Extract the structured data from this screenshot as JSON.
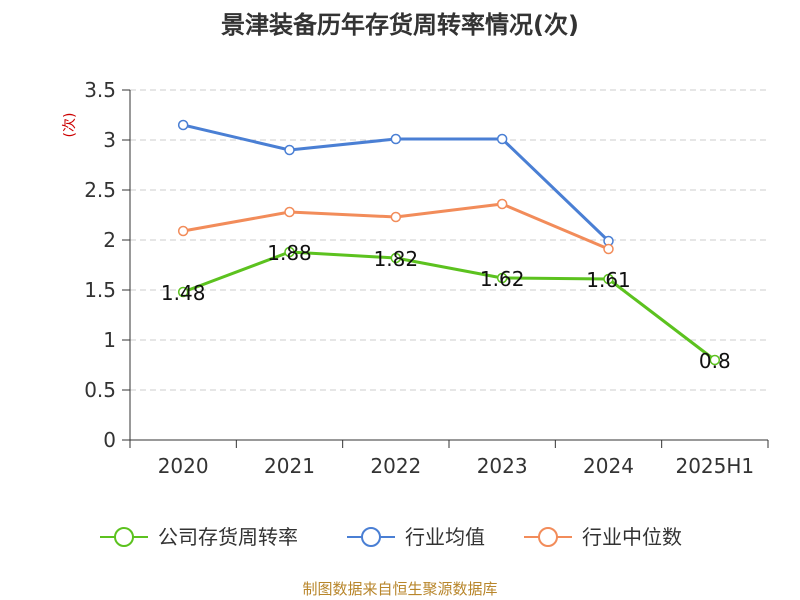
{
  "chart_data": {
    "type": "line",
    "title": "景津装备历年存货周转率情况(次)",
    "ylabel": "(次)",
    "categories": [
      "2020",
      "2021",
      "2022",
      "2023",
      "2024",
      "2025H1"
    ],
    "ylim": [
      0,
      3.5
    ],
    "yticks": [
      "0",
      "0.5",
      "1",
      "1.5",
      "2",
      "2.5",
      "3",
      "3.5"
    ],
    "grid": true,
    "legend_position": "bottom",
    "series": [
      {
        "name": "公司存货周转率",
        "color": "#5cc21f",
        "values": [
          1.48,
          1.88,
          1.82,
          1.62,
          1.61,
          0.8
        ],
        "labels": [
          "1.48",
          "1.88",
          "1.82",
          "1.62",
          "1.61",
          "0.8"
        ]
      },
      {
        "name": "行业均值",
        "color": "#4a7fd4",
        "values": [
          3.15,
          2.9,
          3.01,
          3.01,
          1.99,
          null
        ]
      },
      {
        "name": "行业中位数",
        "color": "#f28c5a",
        "values": [
          2.09,
          2.28,
          2.23,
          2.36,
          1.91,
          null
        ]
      }
    ]
  },
  "source": "制图数据来自恒生聚源数据库"
}
